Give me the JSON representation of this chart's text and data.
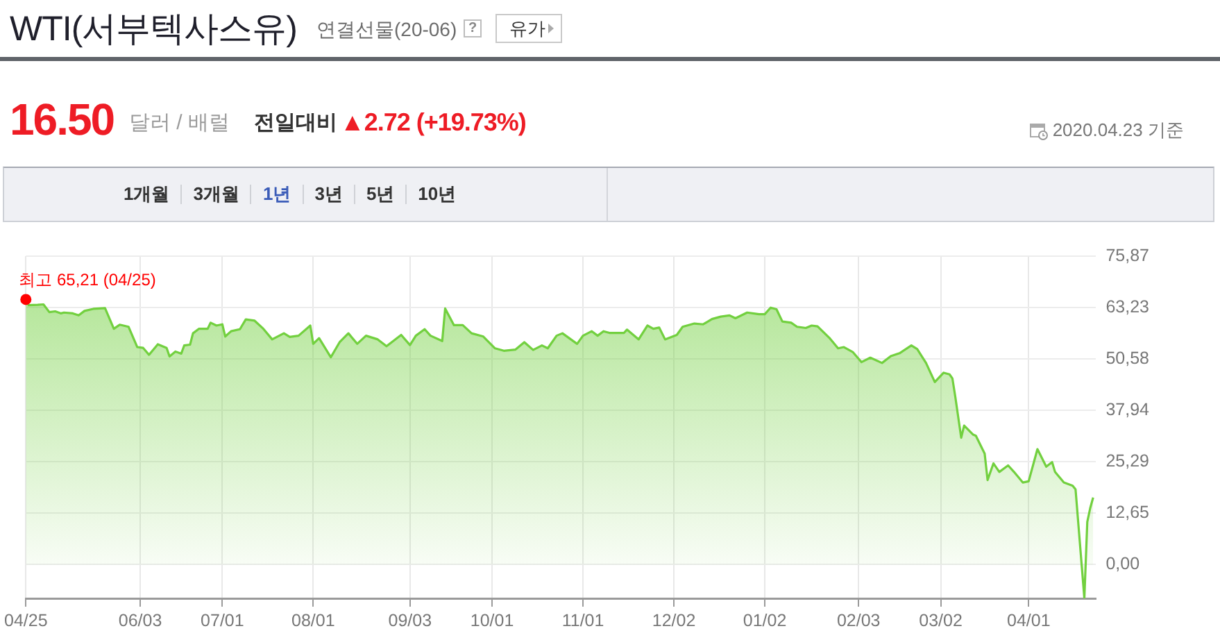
{
  "chart_data": {
    "type": "area",
    "title": "WTI(서부텍사스유)",
    "subtitle": "연결선물(20-06)",
    "annotations": [
      "?",
      "유가",
      "16.50",
      "달러 / 배럴",
      "전일대비",
      "▲2.72 (+19.73%)",
      "2020.04.23 기준",
      "1개월",
      "3개월",
      "1년",
      "3년",
      "5년",
      "10년",
      {
        "text": "최고 65,21 (04/25)",
        "x": "2019-04-25",
        "y": 65.21
      }
    ],
    "x": [
      "2019-04-25",
      "2019-04-26",
      "2019-04-29",
      "2019-05-01",
      "2019-05-03",
      "2019-05-05",
      "2019-05-07",
      "2019-05-08",
      "2019-05-11",
      "2019-05-13",
      "2019-05-15",
      "2019-05-18",
      "2019-05-22",
      "2019-05-25",
      "2019-05-27",
      "2019-05-30",
      "2019-06-02",
      "2019-06-04",
      "2019-06-06",
      "2019-06-09",
      "2019-06-12",
      "2019-06-13",
      "2019-06-15",
      "2019-06-17",
      "2019-06-18",
      "2019-06-20",
      "2019-06-21",
      "2019-06-23",
      "2019-06-26",
      "2019-06-27",
      "2019-06-29",
      "2019-07-01",
      "2019-07-02",
      "2019-07-04",
      "2019-07-07",
      "2019-07-09",
      "2019-07-12",
      "2019-07-15",
      "2019-07-18",
      "2019-07-22",
      "2019-07-24",
      "2019-07-27",
      "2019-07-31",
      "2019-08-01",
      "2019-08-03",
      "2019-08-07",
      "2019-08-10",
      "2019-08-13",
      "2019-08-16",
      "2019-08-19",
      "2019-08-23",
      "2019-08-26",
      "2019-08-31",
      "2019-09-03",
      "2019-09-05",
      "2019-09-08",
      "2019-09-10",
      "2019-09-14",
      "2019-09-15",
      "2019-09-18",
      "2019-09-21",
      "2019-09-24",
      "2019-09-28",
      "2019-10-02",
      "2019-10-05",
      "2019-10-09",
      "2019-10-12",
      "2019-10-15",
      "2019-10-18",
      "2019-10-20",
      "2019-10-23",
      "2019-10-25",
      "2019-10-30",
      "2019-11-01",
      "2019-11-04",
      "2019-11-06",
      "2019-11-08",
      "2019-11-10",
      "2019-11-15",
      "2019-11-16",
      "2019-11-20",
      "2019-11-23",
      "2019-11-25",
      "2019-11-27",
      "2019-11-29",
      "2019-12-03",
      "2019-12-05",
      "2019-12-09",
      "2019-12-12",
      "2019-12-15",
      "2019-12-18",
      "2019-12-21",
      "2019-12-23",
      "2019-12-27",
      "2019-12-31",
      "2020-01-02",
      "2020-01-04",
      "2020-01-06",
      "2020-01-08",
      "2020-01-11",
      "2020-01-13",
      "2020-01-16",
      "2020-01-18",
      "2020-01-20",
      "2020-01-24",
      "2020-01-27",
      "2020-01-29",
      "2020-02-01",
      "2020-02-04",
      "2020-02-07",
      "2020-02-11",
      "2020-02-14",
      "2020-02-17",
      "2020-02-21",
      "2020-02-23",
      "2020-02-26",
      "2020-02-29",
      "2020-03-03",
      "2020-03-05",
      "2020-03-06",
      "2020-03-07",
      "2020-03-09",
      "2020-03-10",
      "2020-03-13",
      "2020-03-14",
      "2020-03-17",
      "2020-03-18",
      "2020-03-20",
      "2020-03-22",
      "2020-03-25",
      "2020-03-27",
      "2020-03-30",
      "2020-04-01",
      "2020-04-04",
      "2020-04-07",
      "2020-04-09",
      "2020-04-10",
      "2020-04-13",
      "2020-04-16",
      "2020-04-17",
      "2020-04-20",
      "2020-04-21",
      "2020-04-22",
      "2020-04-23"
    ],
    "values": [
      65.21,
      63.8,
      63.9,
      64.0,
      62.1,
      62.3,
      61.8,
      62.0,
      61.8,
      61.3,
      62.4,
      62.9,
      63.1,
      58.0,
      59.0,
      58.5,
      53.5,
      53.3,
      51.6,
      54.2,
      53.3,
      51.2,
      52.4,
      51.9,
      53.9,
      54.1,
      56.9,
      58.0,
      58.0,
      59.5,
      58.8,
      59.1,
      56.1,
      57.4,
      57.9,
      60.3,
      60.0,
      58.0,
      55.4,
      56.9,
      56.0,
      56.3,
      58.8,
      54.3,
      55.7,
      51.0,
      54.7,
      56.9,
      54.3,
      56.3,
      55.4,
      53.7,
      56.5,
      54.0,
      56.3,
      57.9,
      56.3,
      55.0,
      63.0,
      58.9,
      58.9,
      56.9,
      56.1,
      53.2,
      52.6,
      52.9,
      54.7,
      52.8,
      53.9,
      53.2,
      56.3,
      56.9,
      54.3,
      56.3,
      57.4,
      56.3,
      57.4,
      57.0,
      57.0,
      57.8,
      55.4,
      58.8,
      58.0,
      58.3,
      55.4,
      56.5,
      58.5,
      59.3,
      59.1,
      60.4,
      61.0,
      61.3,
      60.6,
      62.0,
      61.6,
      61.6,
      63.2,
      62.8,
      59.8,
      59.5,
      58.5,
      58.2,
      58.8,
      58.6,
      55.8,
      53.2,
      53.5,
      52.3,
      49.8,
      50.9,
      49.6,
      51.3,
      52.0,
      53.9,
      53.0,
      49.6,
      44.9,
      47.2,
      46.8,
      45.8,
      41.2,
      31.2,
      34.2,
      32.0,
      31.7,
      27.3,
      20.8,
      24.9,
      22.8,
      24.4,
      22.8,
      20.2,
      20.5,
      28.4,
      24.1,
      25.2,
      22.8,
      20.2,
      19.4,
      18.5,
      -8.3,
      10.5,
      13.9,
      16.5
    ],
    "color": "#72d03f",
    "xlim": [
      "2019-04-25",
      "2020-04-24"
    ],
    "xticks": [
      {
        "value": "2019-04-25",
        "label": "04/25"
      },
      {
        "value": "2019-06-03",
        "label": "06/03"
      },
      {
        "value": "2019-07-01",
        "label": "07/01"
      },
      {
        "value": "2019-08-01",
        "label": "08/01"
      },
      {
        "value": "2019-09-03",
        "label": "09/03"
      },
      {
        "value": "2019-10-01",
        "label": "10/01"
      },
      {
        "value": "2019-11-01",
        "label": "11/01"
      },
      {
        "value": "2019-12-02",
        "label": "12/02"
      },
      {
        "value": "2020-01-02",
        "label": "01/02"
      },
      {
        "value": "2020-02-03",
        "label": "02/03"
      },
      {
        "value": "2020-03-02",
        "label": "03/02"
      },
      {
        "value": "2020-04-01",
        "label": "04/01"
      }
    ],
    "ylim": [
      -8.3,
      75.87
    ],
    "yticks": [
      {
        "value": 0,
        "label": "0,00"
      },
      {
        "value": 12.65,
        "label": "12,65"
      },
      {
        "value": 25.29,
        "label": "25,29"
      },
      {
        "value": 37.94,
        "label": "37,94"
      },
      {
        "value": 50.58,
        "label": "50,58"
      },
      {
        "value": 63.23,
        "label": "63,23"
      },
      {
        "value": 75.87,
        "label": "75,87"
      }
    ],
    "grid": true
  }
}
